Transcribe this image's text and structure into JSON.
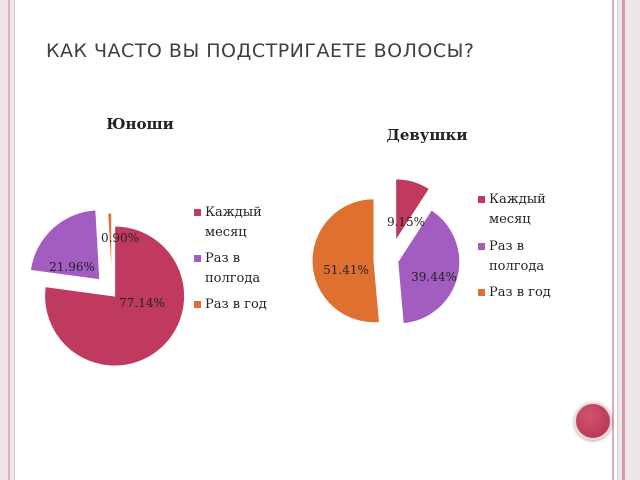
{
  "slide": {
    "title": "КАК ЧАСТО ВЫ ПОДСТРИГАЕТЕ ВОЛОСЫ?"
  },
  "colors": {
    "monthly": "#c0395e",
    "half_year": "#a35cbf",
    "yearly": "#e07030",
    "frame": "#efe6e9",
    "accent_circle": "#c0395e"
  },
  "chart_data": [
    {
      "type": "pie",
      "title": "Юноши",
      "categories": [
        "Каждый месяц",
        "Раз в полгода",
        "Раз в год"
      ],
      "values": [
        77.14,
        21.96,
        0.9
      ],
      "labels": [
        "77.14%",
        "21.96%",
        "0.90%"
      ],
      "exploded": true,
      "legend_position": "right",
      "legend": [
        {
          "lines": [
            "Каждый",
            "месяц"
          ]
        },
        {
          "lines": [
            "Раз в",
            "полгода"
          ]
        },
        {
          "lines": [
            "Раз в год"
          ]
        }
      ]
    },
    {
      "type": "pie",
      "title": "Девушки",
      "categories": [
        "Каждый месяц",
        "Раз в полгода",
        "Раз в год"
      ],
      "values": [
        9.15,
        39.44,
        51.41
      ],
      "labels": [
        "9.15%",
        "39.44%",
        "51.41%"
      ],
      "exploded": true,
      "legend_position": "right",
      "legend": [
        {
          "lines": [
            "Каждый",
            "месяц"
          ]
        },
        {
          "lines": [
            "Раз в",
            "полгода"
          ]
        },
        {
          "lines": [
            "Раз в год"
          ]
        }
      ]
    }
  ]
}
